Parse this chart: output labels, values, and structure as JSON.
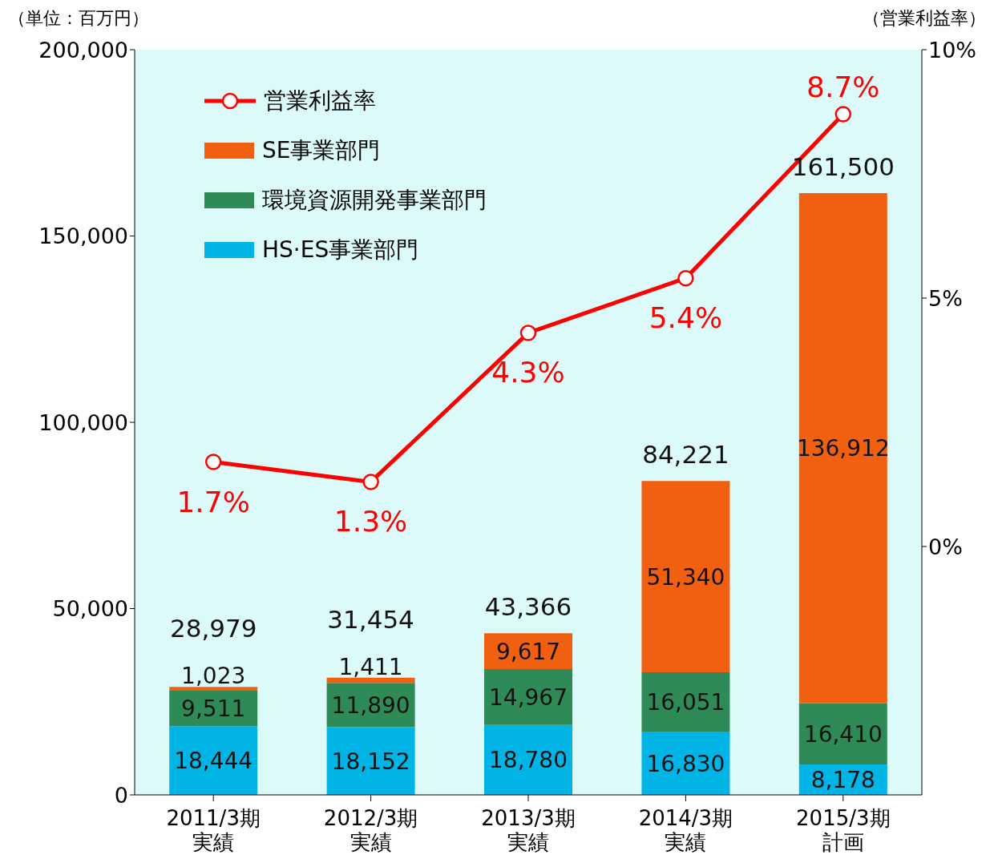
{
  "chart_data": {
    "type": "bar",
    "stacked": true,
    "ylabel": "（単位：百万円）",
    "y2label": "（営業利益率）",
    "categories": [
      "2011/3期実績",
      "2012/3期実績",
      "2013/3期実績",
      "2014/3期実績",
      "2015/3期計画"
    ],
    "series": [
      {
        "name": "HS·ES事業部門",
        "color": "#00b4e6",
        "values": [
          18444,
          18152,
          18780,
          16830,
          8178
        ],
        "value_labels": [
          "18,444",
          "18,152",
          "18,780",
          "16,830",
          "8,178"
        ]
      },
      {
        "name": "環境資源開発事業部門",
        "color": "#2e8b57",
        "values": [
          9511,
          11890,
          14967,
          16051,
          16410
        ],
        "value_labels": [
          "9,511",
          "11,890",
          "14,967",
          "16,051",
          "16,410"
        ]
      },
      {
        "name": "SE事業部門",
        "color": "#f06010",
        "values": [
          1023,
          1411,
          9617,
          51340,
          136912
        ],
        "value_labels": [
          "1,023",
          "1,411",
          "9,617",
          "51,340",
          "136,912"
        ]
      },
      {
        "name": "営業利益率",
        "type": "line",
        "axis": "y2",
        "color": "#ff0000",
        "marker": "circle",
        "values": [
          1.7,
          1.3,
          4.3,
          5.4,
          8.7
        ],
        "value_labels": [
          "1.7%",
          "1.3%",
          "4.3%",
          "5.4%",
          "8.7%"
        ]
      }
    ],
    "totals": [
      "28,979",
      "31,454",
      "43,366",
      "84,221",
      "161,500"
    ],
    "ylim": [
      0,
      200000
    ],
    "yticks": [
      {
        "value": 0,
        "label": "0"
      },
      {
        "value": 50000,
        "label": "50,000"
      },
      {
        "value": 100000,
        "label": "100,000"
      },
      {
        "value": 150000,
        "label": "150,000"
      },
      {
        "value": 200000,
        "label": "200,000"
      }
    ],
    "y2lim": [
      -5,
      10
    ],
    "y2ticks": [
      {
        "value": 0,
        "label": "0%"
      },
      {
        "value": 5,
        "label": "5%"
      },
      {
        "value": 10,
        "label": "10%"
      }
    ],
    "legend": "top left"
  }
}
